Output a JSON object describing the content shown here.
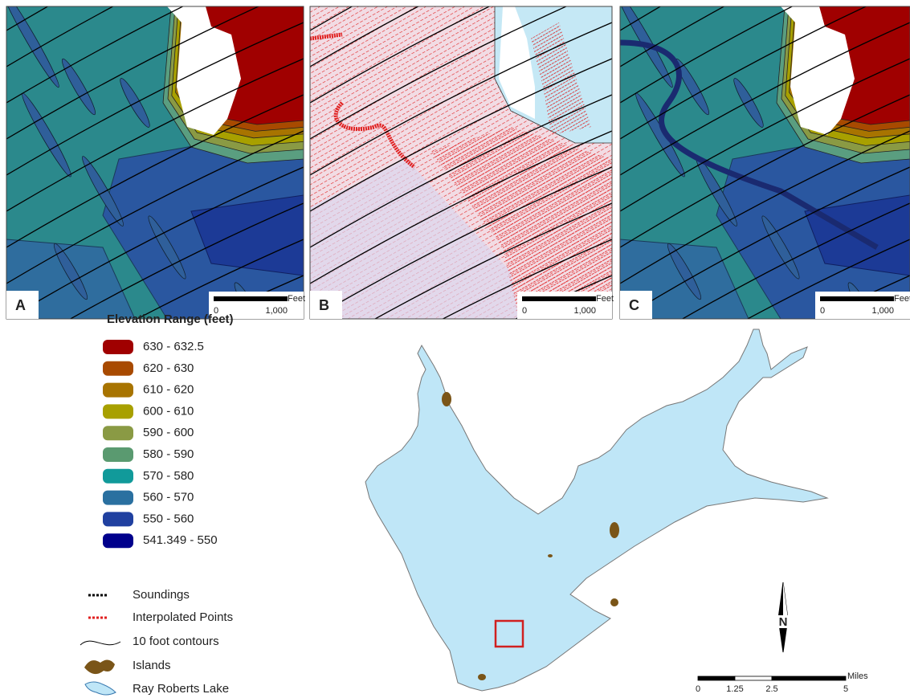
{
  "panels": [
    {
      "label": "A",
      "scale": {
        "unit": "Feet",
        "ticks": [
          "0",
          "1,000"
        ]
      }
    },
    {
      "label": "B",
      "scale": {
        "unit": "Feet",
        "ticks": [
          "0",
          "1,000"
        ]
      }
    },
    {
      "label": "C",
      "scale": {
        "unit": "Feet",
        "ticks": [
          "0",
          "1,000"
        ]
      }
    }
  ],
  "legend": {
    "title": "Elevation Range (feet)",
    "ranges": [
      {
        "label": "630 - 632.5",
        "color": "#a00000"
      },
      {
        "label": "620 - 630",
        "color": "#a84a00"
      },
      {
        "label": "610 - 620",
        "color": "#a87400"
      },
      {
        "label": "600 - 610",
        "color": "#a8a000"
      },
      {
        "label": "590 - 600",
        "color": "#8a9a44"
      },
      {
        "label": "580 - 590",
        "color": "#5a9a70"
      },
      {
        "label": "570 - 580",
        "color": "#119a9a"
      },
      {
        "label": "560 - 570",
        "color": "#2a70a0"
      },
      {
        "label": "550 - 560",
        "color": "#2040a0"
      },
      {
        "label": "541.349 - 550",
        "color": "#00008c"
      }
    ],
    "symbols": [
      {
        "label": "Soundings"
      },
      {
        "label": "Interpolated Points"
      },
      {
        "label": "10 foot contours"
      },
      {
        "label": "Islands"
      },
      {
        "label": "Ray Roberts Lake"
      }
    ]
  },
  "overview": {
    "north": "N",
    "scale": {
      "unit": "Miles",
      "ticks": [
        "0",
        "1.25",
        "2.5",
        "5"
      ]
    }
  }
}
